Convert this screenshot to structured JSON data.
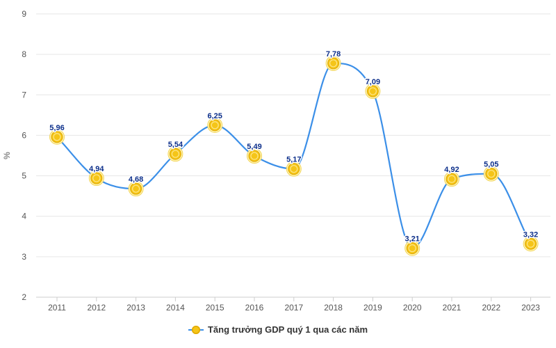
{
  "chart_data": {
    "type": "line",
    "title": "",
    "xlabel": "",
    "ylabel": "%",
    "ylim": [
      2,
      9
    ],
    "yticks": [
      2,
      3,
      4,
      5,
      6,
      7,
      8,
      9
    ],
    "grid": true,
    "legend_position": "bottom-center",
    "categories": [
      "2011",
      "2012",
      "2013",
      "2014",
      "2015",
      "2016",
      "2017",
      "2018",
      "2019",
      "2020",
      "2021",
      "2022",
      "2023"
    ],
    "series": [
      {
        "name": "Tăng trưởng GDP quý 1 qua các năm",
        "values": [
          5.96,
          4.94,
          4.68,
          5.54,
          6.25,
          5.49,
          5.17,
          7.78,
          7.09,
          3.21,
          4.92,
          5.05,
          3.32
        ],
        "labels": [
          "5,96",
          "4,94",
          "4,68",
          "5,54",
          "6,25",
          "5,49",
          "5,17",
          "7,78",
          "7,09",
          "3,21",
          "4,92",
          "5,05",
          "3,32"
        ],
        "line_color": "#3b8fe8",
        "marker": "coin-icon",
        "marker_color": "#f5c518"
      }
    ]
  }
}
